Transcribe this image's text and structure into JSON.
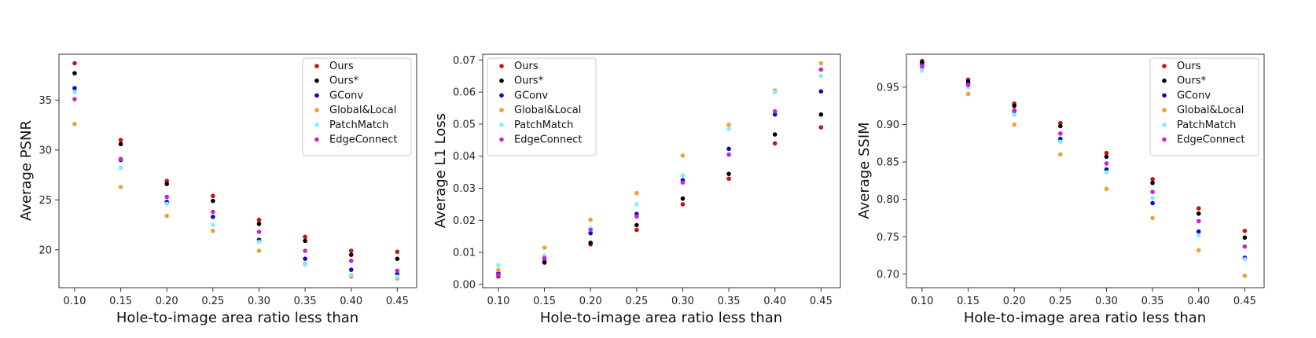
{
  "chart_data": [
    {
      "type": "scatter",
      "xlabel": "Hole-to-image area ratio less than",
      "ylabel": "Average PSNR",
      "x": [
        0.1,
        0.15,
        0.2,
        0.25,
        0.3,
        0.35,
        0.4,
        0.45
      ],
      "xticks": [
        "0.10",
        "0.15",
        "0.20",
        "0.25",
        "0.30",
        "0.35",
        "0.40",
        "0.45"
      ],
      "xlim": [
        0.083,
        0.471
      ],
      "ylim": [
        16.2,
        39.6
      ],
      "yticks": [
        20,
        25,
        30,
        35
      ],
      "ytick_labels": [
        "20",
        "25",
        "30",
        "35"
      ],
      "legend_position": "top-right",
      "series": [
        {
          "name": "Ours",
          "color": "#cc1111",
          "values": [
            38.7,
            31.0,
            26.9,
            25.4,
            23.0,
            21.3,
            19.9,
            19.8
          ]
        },
        {
          "name": "Ours*",
          "color": "#000000",
          "values": [
            37.7,
            30.6,
            26.6,
            24.9,
            22.6,
            20.9,
            19.5,
            19.1
          ]
        },
        {
          "name": "GConv",
          "color": "#0a0acc",
          "values": [
            36.2,
            29.0,
            24.8,
            23.3,
            21.0,
            19.1,
            18.0,
            17.6
          ]
        },
        {
          "name": "Global&Local",
          "color": "#f0a030",
          "values": [
            32.6,
            26.3,
            23.4,
            21.9,
            19.9,
            18.6,
            17.3,
            17.1
          ]
        },
        {
          "name": "PatchMatch",
          "color": "#80eeff",
          "values": [
            35.8,
            28.2,
            24.6,
            22.5,
            20.8,
            18.5,
            17.5,
            17.3
          ]
        },
        {
          "name": "EdgeConnect",
          "color": "#cc22cc",
          "values": [
            35.1,
            29.1,
            25.3,
            23.8,
            21.8,
            19.9,
            18.9,
            17.9
          ]
        }
      ]
    },
    {
      "type": "scatter",
      "xlabel": "Hole-to-image area ratio less than",
      "ylabel": "Average L1 Loss",
      "x": [
        0.1,
        0.15,
        0.2,
        0.25,
        0.3,
        0.35,
        0.4,
        0.45
      ],
      "xticks": [
        "0.10",
        "0.15",
        "0.20",
        "0.25",
        "0.30",
        "0.35",
        "0.40",
        "0.45"
      ],
      "xlim": [
        0.083,
        0.471
      ],
      "ylim": [
        -0.001,
        0.0718
      ],
      "yticks": [
        0.0,
        0.01,
        0.02,
        0.03,
        0.04,
        0.05,
        0.06,
        0.07
      ],
      "ytick_labels": [
        "0.00",
        "0.01",
        "0.02",
        "0.03",
        "0.04",
        "0.05",
        "0.06",
        "0.07"
      ],
      "legend_position": "top-left",
      "series": [
        {
          "name": "Ours",
          "color": "#cc1111",
          "values": [
            0.0025,
            0.0068,
            0.0125,
            0.017,
            0.025,
            0.033,
            0.044,
            0.049
          ]
        },
        {
          "name": "Ours*",
          "color": "#000000",
          "values": [
            0.003,
            0.007,
            0.013,
            0.0185,
            0.0268,
            0.0345,
            0.0468,
            0.053
          ]
        },
        {
          "name": "GConv",
          "color": "#0a0acc",
          "values": [
            0.0035,
            0.008,
            0.016,
            0.022,
            0.0325,
            0.0423,
            0.053,
            0.0602
          ]
        },
        {
          "name": "Global&Local",
          "color": "#f0a030",
          "values": [
            0.0045,
            0.0115,
            0.0202,
            0.0285,
            0.0402,
            0.0498,
            0.0605,
            0.069
          ]
        },
        {
          "name": "PatchMatch",
          "color": "#80eeff",
          "values": [
            0.006,
            0.009,
            0.0175,
            0.025,
            0.034,
            0.0485,
            0.06,
            0.065
          ]
        },
        {
          "name": "EdgeConnect",
          "color": "#cc22cc",
          "values": [
            0.003,
            0.0082,
            0.017,
            0.0212,
            0.0318,
            0.0405,
            0.054,
            0.067
          ]
        }
      ]
    },
    {
      "type": "scatter",
      "xlabel": "Hole-to-image area ratio less than",
      "ylabel": "Average SSIM",
      "x": [
        0.1,
        0.15,
        0.2,
        0.25,
        0.3,
        0.35,
        0.4,
        0.45
      ],
      "xticks": [
        "0.10",
        "0.15",
        "0.20",
        "0.25",
        "0.30",
        "0.35",
        "0.40",
        "0.45"
      ],
      "xlim": [
        0.083,
        0.471
      ],
      "ylim": [
        0.682,
        0.994
      ],
      "yticks": [
        0.7,
        0.75,
        0.8,
        0.85,
        0.9,
        0.95
      ],
      "ytick_labels": [
        "0.70",
        "0.75",
        "0.80",
        "0.85",
        "0.90",
        "0.95"
      ],
      "legend_position": "top-right",
      "series": [
        {
          "name": "Ours",
          "color": "#cc1111",
          "values": [
            0.985,
            0.96,
            0.928,
            0.902,
            0.862,
            0.827,
            0.788,
            0.758
          ]
        },
        {
          "name": "Ours*",
          "color": "#000000",
          "values": [
            0.983,
            0.957,
            0.925,
            0.898,
            0.857,
            0.822,
            0.781,
            0.749
          ]
        },
        {
          "name": "GConv",
          "color": "#0a0acc",
          "values": [
            0.98,
            0.954,
            0.918,
            0.881,
            0.84,
            0.795,
            0.757,
            0.722
          ]
        },
        {
          "name": "Global&Local",
          "color": "#f0a030",
          "values": [
            0.975,
            0.941,
            0.9,
            0.86,
            0.814,
            0.775,
            0.732,
            0.698
          ]
        },
        {
          "name": "PatchMatch",
          "color": "#80eeff",
          "values": [
            0.972,
            0.95,
            0.913,
            0.877,
            0.836,
            0.802,
            0.752,
            0.72
          ]
        },
        {
          "name": "EdgeConnect",
          "color": "#cc22cc",
          "values": [
            0.978,
            0.953,
            0.919,
            0.888,
            0.848,
            0.81,
            0.771,
            0.737
          ]
        }
      ]
    }
  ]
}
